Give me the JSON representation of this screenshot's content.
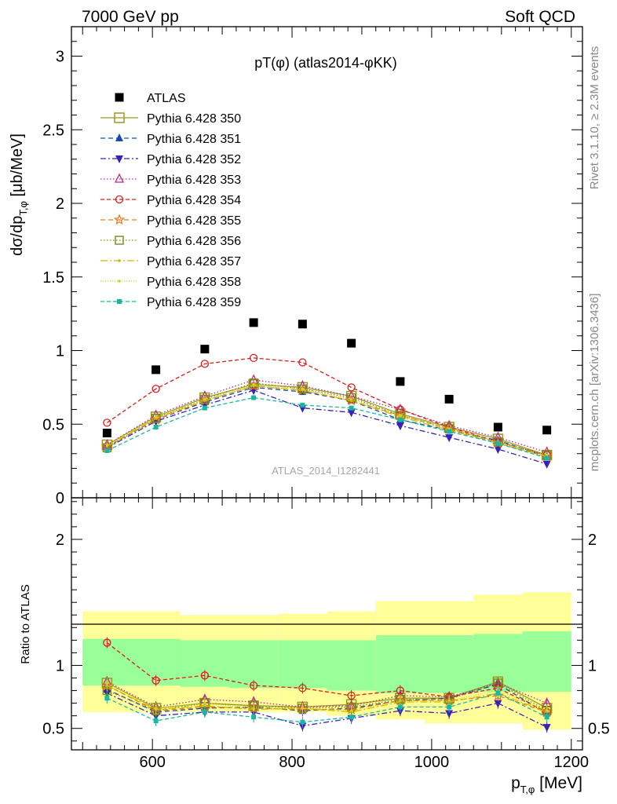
{
  "header": {
    "left": "7000 GeV pp",
    "right": "Soft QCD"
  },
  "side_text": {
    "rivet": "Rivet 3.1.10, ≥ 2.3M events",
    "mcplots": "mcplots.cern.ch [arXiv:1306.3436]"
  },
  "chart_data": [
    {
      "type": "scatter",
      "panel": "main",
      "title": "pT(φ) (atlas2014-φKK)",
      "watermark": "ATLAS_2014_I1282441",
      "ylabel": "dσ/dp_T,φ [μb/MeV]",
      "ylim": [
        0,
        3.2
      ],
      "yticks": [
        "0",
        "0.5",
        "1",
        "1.5",
        "2",
        "2.5",
        "3"
      ],
      "ytick_values": [
        0,
        0.5,
        1,
        1.5,
        2,
        2.5,
        3
      ],
      "legend_position": "top-left",
      "x": [
        535,
        605,
        675,
        745,
        815,
        885,
        955,
        1025,
        1095,
        1165
      ],
      "data": {
        "name": "ATLAS",
        "values": [
          0.44,
          0.87,
          1.01,
          1.19,
          1.18,
          1.05,
          0.79,
          0.67,
          0.48,
          0.46
        ]
      },
      "series": [
        {
          "name": "Pythia 6.428 350",
          "color": "#9a9a22",
          "dash": "",
          "marker": "open-square-large",
          "values": [
            0.36,
            0.55,
            0.68,
            0.77,
            0.75,
            0.69,
            0.57,
            0.48,
            0.4,
            0.29
          ]
        },
        {
          "name": "Pythia 6.428 351",
          "color": "#1a4aa8",
          "dash": "6,4",
          "marker": "triangle-up",
          "values": [
            0.35,
            0.53,
            0.65,
            0.75,
            0.72,
            0.66,
            0.53,
            0.46,
            0.39,
            0.28
          ]
        },
        {
          "name": "Pythia 6.428 352",
          "color": "#3a22b8",
          "dash": "7,3,2,3",
          "marker": "triangle-down",
          "values": [
            0.34,
            0.52,
            0.63,
            0.73,
            0.61,
            0.58,
            0.49,
            0.41,
            0.33,
            0.23
          ]
        },
        {
          "name": "Pythia 6.428 353",
          "color": "#bb2a8a",
          "dash": "1.5,2.5",
          "marker": "open-triangle",
          "values": [
            0.36,
            0.56,
            0.69,
            0.8,
            0.76,
            0.69,
            0.6,
            0.49,
            0.41,
            0.31
          ]
        },
        {
          "name": "Pythia 6.428 354",
          "color": "#dd1c1c",
          "dash": "5,3",
          "marker": "open-circle",
          "values": [
            0.51,
            0.74,
            0.91,
            0.95,
            0.92,
            0.75,
            0.6,
            0.48,
            0.38,
            0.29
          ]
        },
        {
          "name": "Pythia 6.428 355",
          "color": "#ee7722",
          "dash": "6,4",
          "marker": "open-star",
          "values": [
            0.35,
            0.53,
            0.66,
            0.76,
            0.73,
            0.66,
            0.56,
            0.47,
            0.37,
            0.28
          ]
        },
        {
          "name": "Pythia 6.428 356",
          "color": "#7a8a18",
          "dash": "1.5,2.5",
          "marker": "open-square",
          "values": [
            0.34,
            0.54,
            0.67,
            0.78,
            0.74,
            0.68,
            0.56,
            0.47,
            0.38,
            0.29
          ]
        },
        {
          "name": "Pythia 6.428 357",
          "color": "#d8b800",
          "dash": "9,3,2,3",
          "marker": "small-dot",
          "values": [
            0.35,
            0.54,
            0.66,
            0.76,
            0.73,
            0.66,
            0.55,
            0.46,
            0.37,
            0.28
          ]
        },
        {
          "name": "Pythia 6.428 358",
          "color": "#c8d818",
          "dash": "1,2",
          "marker": "small-dot",
          "values": [
            0.36,
            0.55,
            0.67,
            0.77,
            0.74,
            0.67,
            0.56,
            0.47,
            0.38,
            0.29
          ]
        },
        {
          "name": "Pythia 6.428 359",
          "color": "#18b8a0",
          "dash": "5,3",
          "marker": "filled-small-square",
          "values": [
            0.32,
            0.48,
            0.61,
            0.68,
            0.63,
            0.61,
            0.53,
            0.45,
            0.37,
            0.27
          ]
        }
      ]
    },
    {
      "type": "line",
      "panel": "ratio",
      "ylabel": "Ratio to ATLAS",
      "xlabel": "p_T,φ [MeV]",
      "ylim": [
        0.33,
        2.33
      ],
      "yticks": [
        "0.5",
        "1",
        "2"
      ],
      "ytick_values": [
        0.5,
        1,
        2
      ],
      "xlim": [
        484,
        1216
      ],
      "xticks": [
        "600",
        "800",
        "1000",
        "1200"
      ],
      "xtick_values": [
        600,
        800,
        1000,
        1200
      ],
      "bin_edges": [
        500,
        570,
        640,
        710,
        780,
        850,
        920,
        990,
        1060,
        1130,
        1200
      ],
      "band_outer": {
        "color": "#ffff99",
        "low": [
          0.63,
          0.63,
          0.63,
          0.63,
          0.63,
          0.6,
          0.57,
          0.54,
          0.54,
          0.49
        ],
        "high": [
          1.43,
          1.43,
          1.4,
          1.4,
          1.41,
          1.43,
          1.51,
          1.51,
          1.56,
          1.58
        ]
      },
      "band_inner": {
        "color": "#99ff99",
        "low": [
          0.84,
          0.84,
          0.83,
          0.82,
          0.82,
          0.8,
          0.78,
          0.78,
          0.79,
          0.79
        ],
        "high": [
          1.21,
          1.21,
          1.2,
          1.2,
          1.2,
          1.2,
          1.24,
          1.24,
          1.25,
          1.27
        ]
      },
      "series": [
        {
          "name": "Pythia 6.428 350",
          "values": [
            0.86,
            0.66,
            0.7,
            0.68,
            0.67,
            0.69,
            0.74,
            0.74,
            0.87,
            0.66
          ]
        },
        {
          "name": "Pythia 6.428 351",
          "values": [
            0.81,
            0.63,
            0.66,
            0.67,
            0.64,
            0.66,
            0.72,
            0.74,
            0.85,
            0.62
          ]
        },
        {
          "name": "Pythia 6.428 352",
          "values": [
            0.78,
            0.6,
            0.63,
            0.63,
            0.52,
            0.58,
            0.64,
            0.62,
            0.7,
            0.51
          ]
        },
        {
          "name": "Pythia 6.428 353",
          "values": [
            0.87,
            0.67,
            0.73,
            0.71,
            0.67,
            0.68,
            0.76,
            0.75,
            0.86,
            0.7
          ]
        },
        {
          "name": "Pythia 6.428 354",
          "values": [
            1.18,
            0.88,
            0.92,
            0.84,
            0.82,
            0.76,
            0.8,
            0.75,
            0.82,
            0.63
          ]
        },
        {
          "name": "Pythia 6.428 355",
          "values": [
            0.84,
            0.64,
            0.67,
            0.66,
            0.65,
            0.65,
            0.72,
            0.72,
            0.76,
            0.63
          ]
        },
        {
          "name": "Pythia 6.428 356",
          "values": [
            0.8,
            0.64,
            0.7,
            0.68,
            0.66,
            0.67,
            0.73,
            0.73,
            0.86,
            0.64
          ]
        },
        {
          "name": "Pythia 6.428 357",
          "values": [
            0.84,
            0.65,
            0.68,
            0.65,
            0.66,
            0.63,
            0.71,
            0.71,
            0.78,
            0.63
          ]
        },
        {
          "name": "Pythia 6.428 358",
          "values": [
            0.86,
            0.66,
            0.7,
            0.66,
            0.66,
            0.64,
            0.72,
            0.72,
            0.8,
            0.64
          ]
        },
        {
          "name": "Pythia 6.428 359",
          "values": [
            0.74,
            0.56,
            0.63,
            0.59,
            0.55,
            0.59,
            0.67,
            0.67,
            0.78,
            0.59
          ]
        }
      ]
    }
  ]
}
